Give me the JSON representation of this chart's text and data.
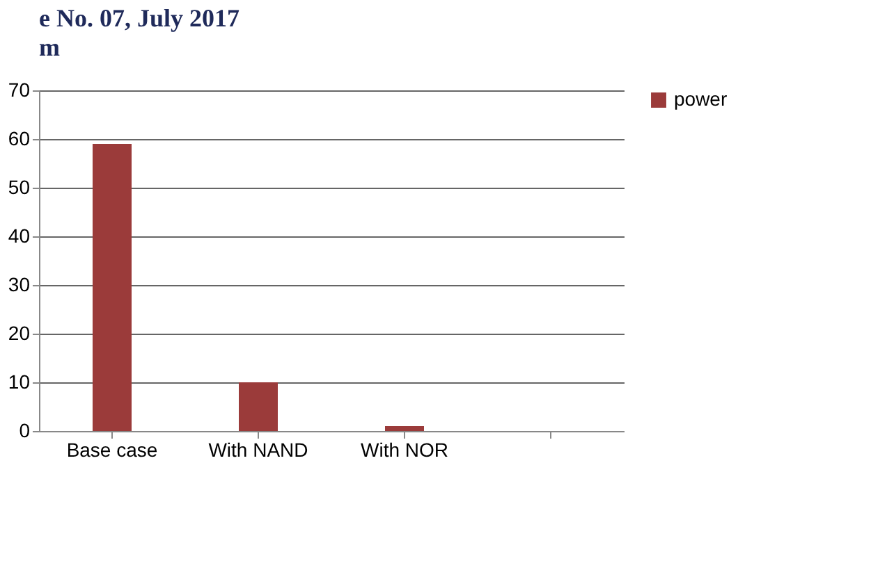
{
  "chart_data": {
    "type": "bar",
    "title": "e No. 07, July 2017",
    "subtitle": "m",
    "categories": [
      "Base case",
      "With NAND",
      "With NOR",
      null
    ],
    "series": [
      {
        "name": "power",
        "color": "#9b3b3a",
        "values": [
          59,
          10,
          1,
          null
        ]
      }
    ],
    "ylim": [
      0,
      70
    ],
    "yticks": [
      0,
      10,
      20,
      30,
      40,
      50,
      60,
      70
    ],
    "grid": "y",
    "legend": "right"
  }
}
